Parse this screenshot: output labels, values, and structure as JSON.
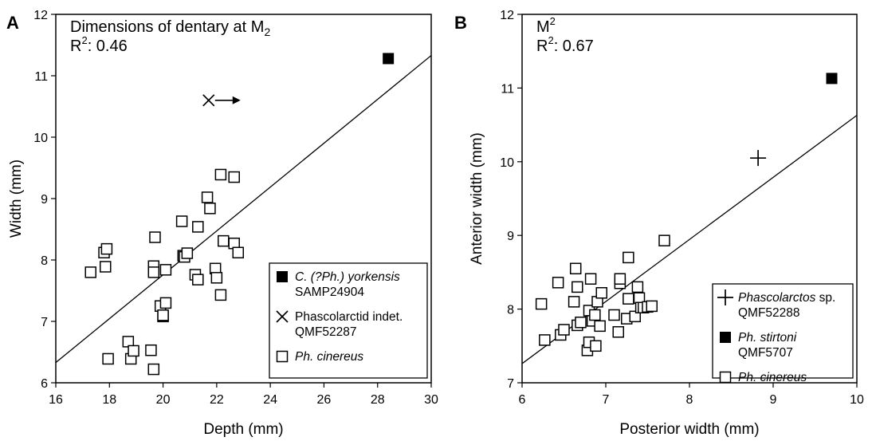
{
  "chart_data": [
    {
      "panel_letter": "A",
      "type": "scatter",
      "title": "Dimensions of dentary at M",
      "title_subscript": "2",
      "r2_label": "R",
      "r2_sup": "2",
      "r2_value": ": 0.46",
      "xlabel": "Depth (mm)",
      "ylabel": "Width (mm)",
      "xlim": [
        16,
        30
      ],
      "ylim": [
        6,
        12
      ],
      "xticks": [
        16,
        18,
        20,
        22,
        24,
        26,
        28,
        30
      ],
      "yticks": [
        6,
        7,
        8,
        9,
        10,
        11,
        12
      ],
      "grid": false,
      "legend_position": "bottom-right",
      "trendline": {
        "x": [
          16,
          30
        ],
        "y": [
          6.33,
          11.33
        ]
      },
      "series": [
        {
          "marker": "filled-square",
          "label_lines": [
            {
              "text": "C. (?Ph.) yorkensis",
              "italic": true
            },
            {
              "text": "SAMP24904",
              "italic": false
            }
          ],
          "points": [
            [
              28.4,
              11.28
            ]
          ]
        },
        {
          "marker": "x-cross",
          "arrow": "right",
          "label_lines": [
            {
              "text": "Phascolarctid indet.",
              "italic": false
            },
            {
              "text": "QMF52287",
              "italic": false
            }
          ],
          "points": [
            [
              21.7,
              10.6
            ]
          ]
        },
        {
          "marker": "open-square",
          "label_lines": [
            {
              "text": "Ph. cinereus",
              "italic": true
            }
          ],
          "points": [
            [
              17.3,
              7.8
            ],
            [
              17.8,
              8.12
            ],
            [
              17.9,
              8.18
            ],
            [
              17.85,
              7.89
            ],
            [
              17.95,
              6.39
            ],
            [
              18.7,
              6.67
            ],
            [
              18.8,
              6.39
            ],
            [
              18.9,
              6.52
            ],
            [
              19.55,
              6.53
            ],
            [
              19.65,
              6.22
            ],
            [
              19.65,
              7.9
            ],
            [
              19.65,
              7.8
            ],
            [
              19.7,
              8.37
            ],
            [
              19.9,
              7.25
            ],
            [
              20.0,
              7.08
            ],
            [
              20.0,
              7.1
            ],
            [
              20.1,
              7.3
            ],
            [
              20.1,
              7.84
            ],
            [
              20.7,
              8.63
            ],
            [
              20.75,
              8.07
            ],
            [
              20.8,
              8.05
            ],
            [
              20.9,
              8.11
            ],
            [
              21.2,
              7.76
            ],
            [
              21.3,
              7.68
            ],
            [
              21.3,
              8.54
            ],
            [
              21.65,
              9.02
            ],
            [
              21.75,
              8.84
            ],
            [
              21.95,
              7.86
            ],
            [
              22.0,
              7.71
            ],
            [
              22.15,
              7.43
            ],
            [
              22.15,
              9.39
            ],
            [
              22.25,
              8.31
            ],
            [
              22.65,
              9.35
            ],
            [
              22.65,
              8.27
            ],
            [
              22.8,
              8.12
            ]
          ]
        }
      ]
    },
    {
      "panel_letter": "B",
      "type": "scatter",
      "title": "M",
      "title_superscript": "2",
      "r2_label": "R",
      "r2_sup": "2",
      "r2_value": ": 0.67",
      "xlabel": "Posterior width (mm)",
      "ylabel": "Anterior width (mm)",
      "xlim": [
        6,
        10
      ],
      "ylim": [
        7,
        12
      ],
      "xticks": [
        6,
        7,
        8,
        9,
        10
      ],
      "yticks": [
        7,
        8,
        9,
        10,
        11,
        12
      ],
      "grid": false,
      "legend_position": "bottom-right",
      "trendline": {
        "x": [
          6,
          10
        ],
        "y": [
          7.26,
          10.63
        ]
      },
      "series": [
        {
          "marker": "plus",
          "label_lines": [
            {
              "text": "Phascolarctos",
              "italic": true,
              "suffix": " sp."
            },
            {
              "text": "QMF52288",
              "italic": false
            }
          ],
          "points": [
            [
              8.82,
              10.05
            ]
          ]
        },
        {
          "marker": "filled-square",
          "label_lines": [
            {
              "text": "Ph. stirtoni",
              "italic": true
            },
            {
              "text": "QMF5707",
              "italic": false
            }
          ],
          "points": [
            [
              9.7,
              11.13
            ]
          ]
        },
        {
          "marker": "open-square",
          "label_lines": [
            {
              "text": "Ph. cinereus",
              "italic": true
            }
          ],
          "points": [
            [
              6.23,
              8.07
            ],
            [
              6.27,
              7.58
            ],
            [
              6.43,
              8.36
            ],
            [
              6.46,
              7.65
            ],
            [
              6.5,
              7.72
            ],
            [
              6.62,
              8.1
            ],
            [
              6.64,
              8.55
            ],
            [
              6.66,
              8.3
            ],
            [
              6.66,
              7.78
            ],
            [
              6.7,
              7.82
            ],
            [
              6.78,
              7.44
            ],
            [
              6.8,
              7.98
            ],
            [
              6.8,
              7.55
            ],
            [
              6.82,
              8.41
            ],
            [
              6.84,
              7.84
            ],
            [
              6.87,
              7.92
            ],
            [
              6.88,
              7.5
            ],
            [
              6.9,
              8.1
            ],
            [
              6.93,
              7.77
            ],
            [
              6.95,
              8.22
            ],
            [
              7.1,
              7.92
            ],
            [
              7.15,
              7.69
            ],
            [
              7.17,
              8.35
            ],
            [
              7.17,
              8.41
            ],
            [
              7.25,
              7.87
            ],
            [
              7.27,
              8.14
            ],
            [
              7.27,
              8.7
            ],
            [
              7.35,
              7.9
            ],
            [
              7.38,
              8.3
            ],
            [
              7.4,
              8.15
            ],
            [
              7.42,
              8.02
            ],
            [
              7.45,
              8.02
            ],
            [
              7.5,
              8.03
            ],
            [
              7.55,
              8.04
            ],
            [
              7.7,
              8.93
            ]
          ]
        }
      ]
    }
  ]
}
